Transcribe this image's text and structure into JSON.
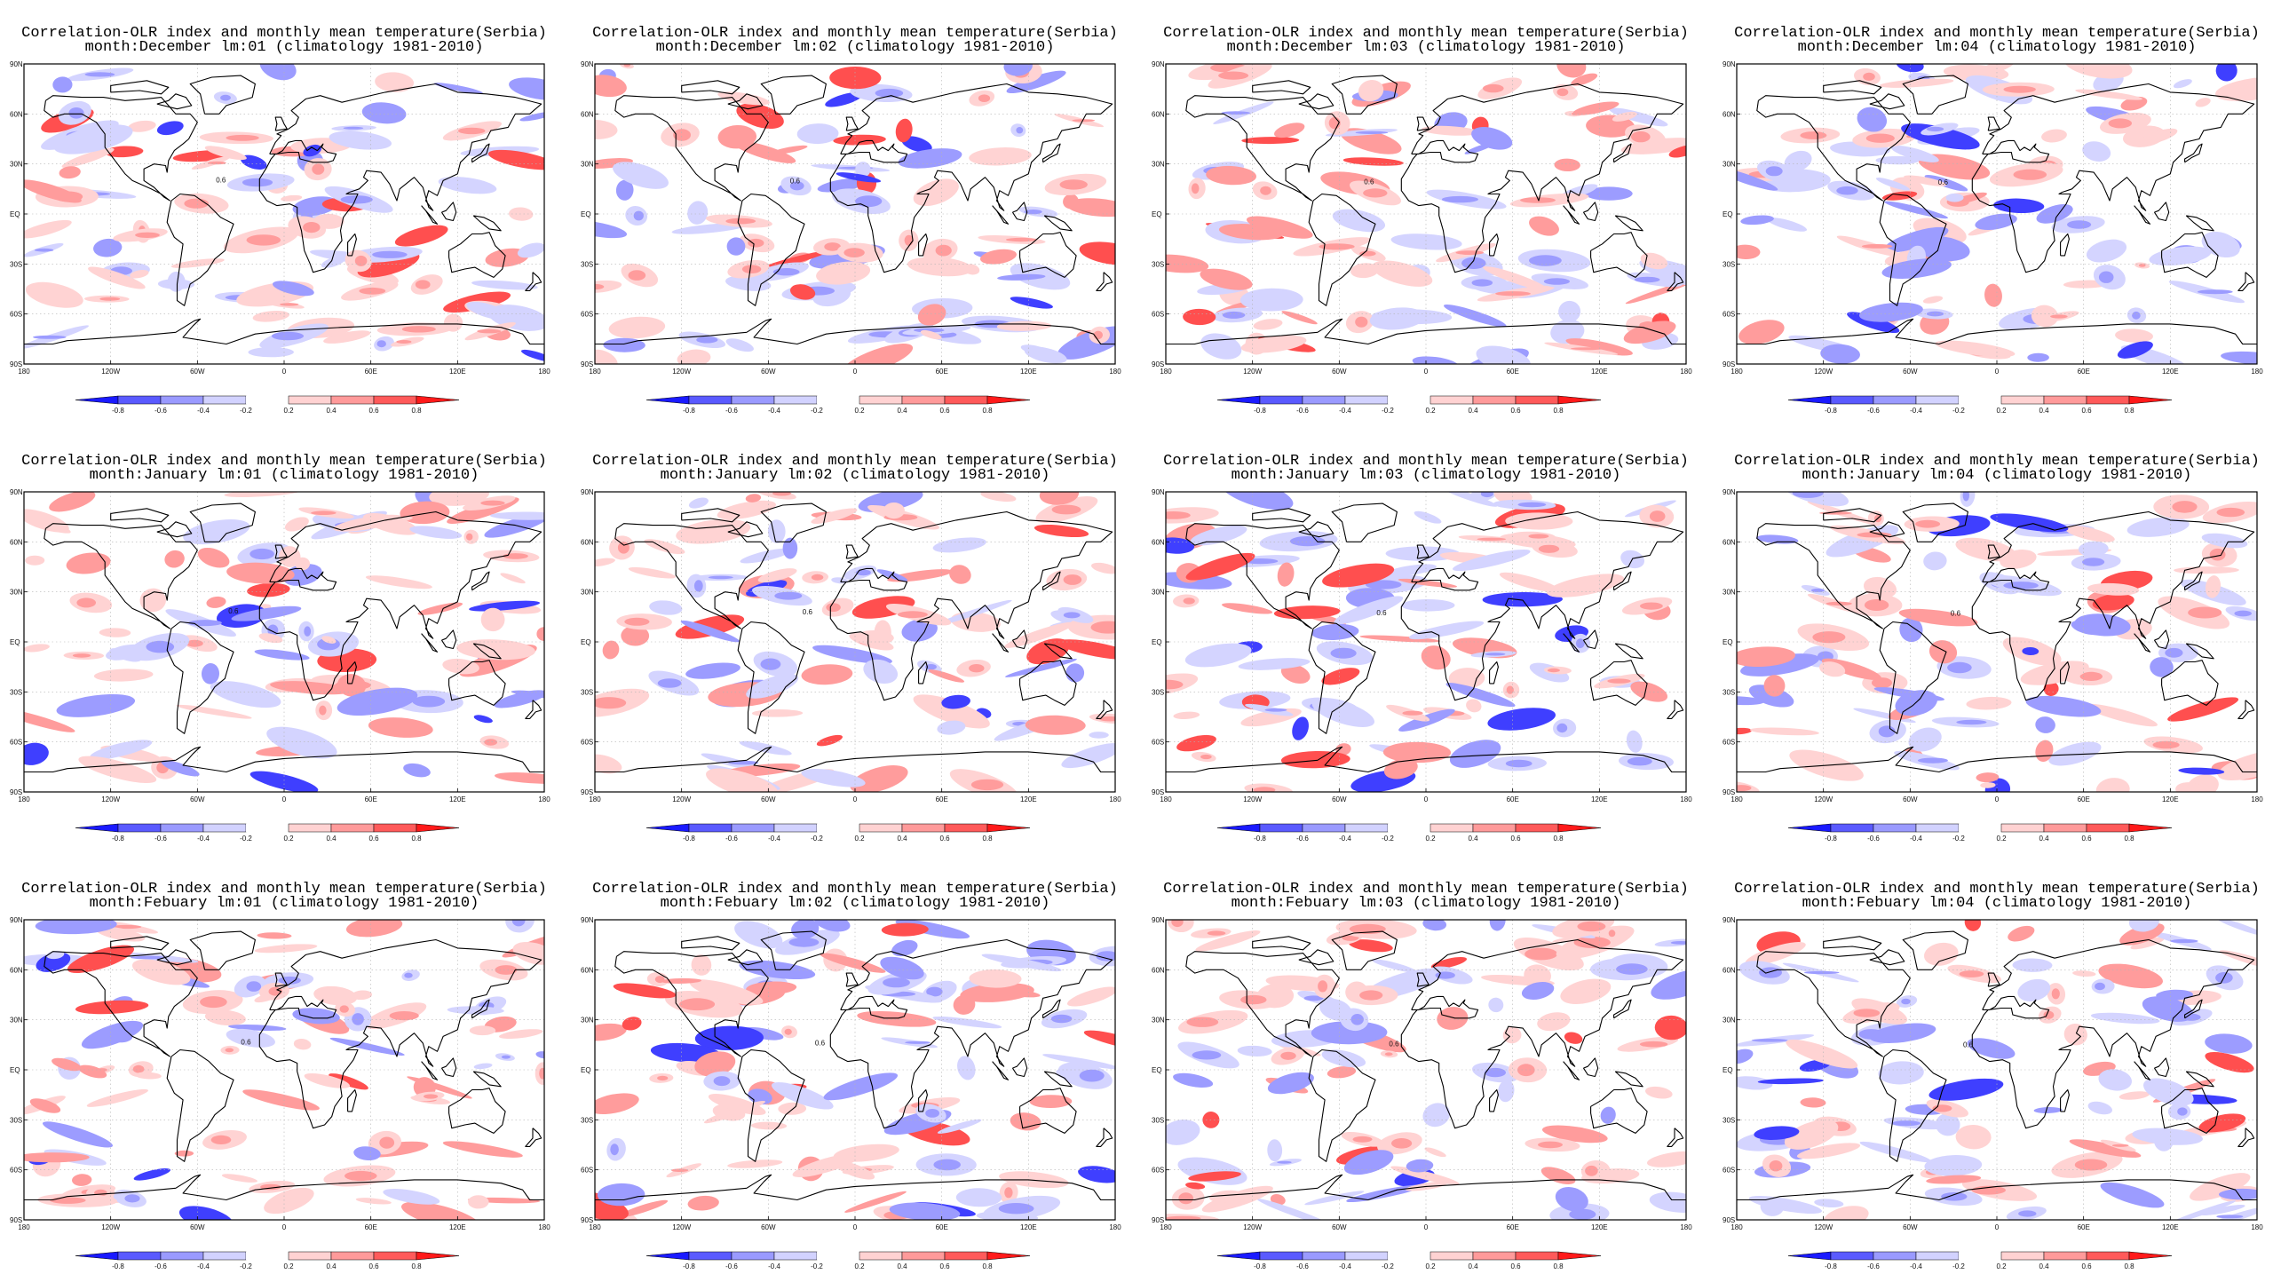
{
  "title_line1": "Correlation-OLR index and monthly mean temperature(Serbia)",
  "climatology": "(climatology 1981-2010)",
  "rows": [
    "December",
    "January",
    "Febuary"
  ],
  "lead_months": [
    "01",
    "02",
    "03",
    "04"
  ],
  "panels": [
    {
      "title2": "month:December lm:01 (climatology 1981-2010)"
    },
    {
      "title2": "month:December lm:02 (climatology 1981-2010)"
    },
    {
      "title2": "month:December lm:03 (climatology 1981-2010)"
    },
    {
      "title2": "month:December lm:04 (climatology 1981-2010)"
    },
    {
      "title2": "month:January lm:01 (climatology 1981-2010)"
    },
    {
      "title2": "month:January lm:02 (climatology 1981-2010)"
    },
    {
      "title2": "month:January lm:03 (climatology 1981-2010)"
    },
    {
      "title2": "month:January lm:04 (climatology 1981-2010)"
    },
    {
      "title2": "month:Febuary lm:01 (climatology 1981-2010)"
    },
    {
      "title2": "month:Febuary lm:02 (climatology 1981-2010)"
    },
    {
      "title2": "month:Febuary lm:03 (climatology 1981-2010)"
    },
    {
      "title2": "month:Febuary lm:04 (climatology 1981-2010)"
    }
  ],
  "lat_labels": [
    "90N",
    "60N",
    "30N",
    "EQ",
    "30S",
    "60S",
    "90S"
  ],
  "lon_labels": [
    "180",
    "120W",
    "60W",
    "0",
    "60E",
    "120E",
    "180"
  ],
  "colorbar": {
    "labels": [
      "-0.8",
      "-0.6",
      "-0.4",
      "-0.2",
      "0.2",
      "0.4",
      "0.6",
      "0.8"
    ],
    "colors": [
      "#1a1aff",
      "#5a5aff",
      "#9a9aff",
      "#d2d2ff",
      "#ffffff",
      "#ffd2d2",
      "#ff9a9a",
      "#ff5a5a",
      "#ff1a1a"
    ]
  },
  "contour_label": "0.6",
  "map_colors": {
    "pos_weak": "#ffd3d3",
    "pos_mid": "#ff9c9c",
    "pos_strong": "#ff4f4f",
    "neg_weak": "#d4d4ff",
    "neg_mid": "#9c9cff",
    "neg_strong": "#3f3fff",
    "coast": "#000000",
    "grid": "#b4b4b4"
  }
}
